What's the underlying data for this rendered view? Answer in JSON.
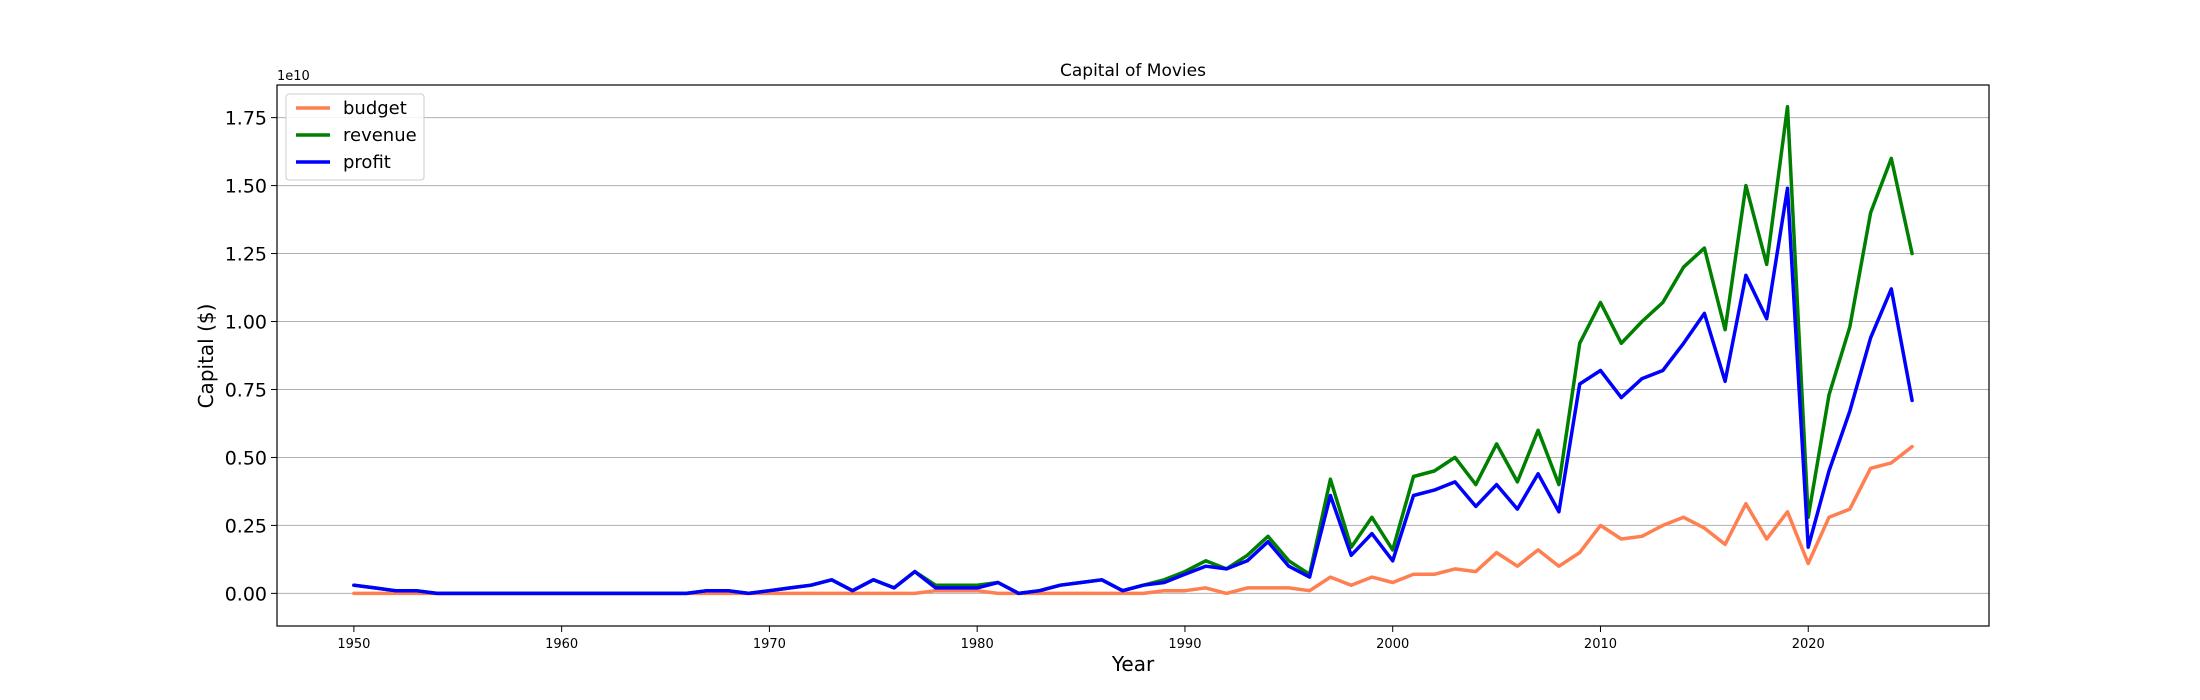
{
  "chart_data": {
    "type": "line",
    "title": "Capital of Movies",
    "xlabel": "Year",
    "ylabel": "Capital ($)",
    "y_offset_label": "1e10",
    "xlim": [
      1946.3,
      2028.7
    ],
    "ylim": [
      -0.12,
      1.87
    ],
    "x_ticks": [
      1950,
      1960,
      1970,
      1980,
      1990,
      2000,
      2010,
      2020
    ],
    "y_ticks": [
      0.0,
      0.25,
      0.5,
      0.75,
      1.0,
      1.25,
      1.5,
      1.75
    ],
    "y_tick_labels": [
      "0.00",
      "0.25",
      "0.50",
      "0.75",
      "1.00",
      "1.25",
      "1.50",
      "1.75"
    ],
    "grid": "horizontal",
    "legend_position": "top-left",
    "x": [
      1950,
      1951,
      1952,
      1953,
      1954,
      1955,
      1956,
      1957,
      1958,
      1959,
      1960,
      1961,
      1962,
      1963,
      1964,
      1965,
      1966,
      1967,
      1968,
      1969,
      1970,
      1971,
      1972,
      1973,
      1974,
      1975,
      1976,
      1977,
      1978,
      1979,
      1980,
      1981,
      1982,
      1983,
      1984,
      1985,
      1986,
      1987,
      1988,
      1989,
      1990,
      1991,
      1992,
      1993,
      1994,
      1995,
      1996,
      1997,
      1998,
      1999,
      2000,
      2001,
      2002,
      2003,
      2004,
      2005,
      2006,
      2007,
      2008,
      2009,
      2010,
      2011,
      2012,
      2013,
      2014,
      2015,
      2016,
      2017,
      2018,
      2019,
      2020,
      2021,
      2022,
      2023,
      2024,
      2025
    ],
    "series": [
      {
        "name": "budget",
        "color": "#ff7f50",
        "values": [
          0.0,
          0.0,
          0.0,
          0.0,
          0.0,
          0.0,
          0.0,
          0.0,
          0.0,
          0.0,
          0.0,
          0.0,
          0.0,
          0.0,
          0.0,
          0.0,
          0.0,
          0.0,
          0.0,
          0.0,
          0.0,
          0.0,
          0.0,
          0.0,
          0.0,
          0.0,
          0.0,
          0.0,
          0.01,
          0.01,
          0.01,
          0.0,
          0.0,
          0.0,
          0.0,
          0.0,
          0.0,
          0.0,
          0.0,
          0.01,
          0.01,
          0.02,
          0.0,
          0.02,
          0.02,
          0.02,
          0.01,
          0.06,
          0.03,
          0.06,
          0.04,
          0.07,
          0.07,
          0.09,
          0.08,
          0.15,
          0.1,
          0.16,
          0.1,
          0.15,
          0.25,
          0.2,
          0.21,
          0.25,
          0.28,
          0.24,
          0.18,
          0.33,
          0.2,
          0.3,
          0.11,
          0.28,
          0.31,
          0.46,
          0.48,
          0.54
        ]
      },
      {
        "name": "revenue",
        "color": "#008000",
        "values": [
          0.03,
          0.02,
          0.01,
          0.01,
          0.0,
          0.0,
          0.0,
          0.0,
          0.0,
          0.0,
          0.0,
          0.0,
          0.0,
          0.0,
          0.0,
          0.0,
          0.0,
          0.01,
          0.01,
          0.0,
          0.01,
          0.02,
          0.03,
          0.05,
          0.01,
          0.05,
          0.02,
          0.08,
          0.03,
          0.03,
          0.03,
          0.04,
          0.0,
          0.01,
          0.03,
          0.04,
          0.05,
          0.01,
          0.03,
          0.05,
          0.08,
          0.12,
          0.09,
          0.14,
          0.21,
          0.12,
          0.07,
          0.42,
          0.17,
          0.28,
          0.16,
          0.43,
          0.45,
          0.5,
          0.4,
          0.55,
          0.41,
          0.6,
          0.4,
          0.92,
          1.07,
          0.92,
          1.0,
          1.07,
          1.2,
          1.27,
          0.97,
          1.5,
          1.21,
          1.79,
          0.28,
          0.73,
          0.98,
          1.4,
          1.6,
          1.25
        ]
      },
      {
        "name": "profit",
        "color": "#0000ff",
        "values": [
          0.03,
          0.02,
          0.01,
          0.01,
          0.0,
          0.0,
          0.0,
          0.0,
          0.0,
          0.0,
          0.0,
          0.0,
          0.0,
          0.0,
          0.0,
          0.0,
          0.0,
          0.01,
          0.01,
          0.0,
          0.01,
          0.02,
          0.03,
          0.05,
          0.01,
          0.05,
          0.02,
          0.08,
          0.02,
          0.02,
          0.02,
          0.04,
          0.0,
          0.01,
          0.03,
          0.04,
          0.05,
          0.01,
          0.03,
          0.04,
          0.07,
          0.1,
          0.09,
          0.12,
          0.19,
          0.1,
          0.06,
          0.36,
          0.14,
          0.22,
          0.12,
          0.36,
          0.38,
          0.41,
          0.32,
          0.4,
          0.31,
          0.44,
          0.3,
          0.77,
          0.82,
          0.72,
          0.79,
          0.82,
          0.92,
          1.03,
          0.78,
          1.17,
          1.01,
          1.49,
          0.17,
          0.45,
          0.67,
          0.94,
          1.12,
          0.71
        ]
      }
    ]
  }
}
